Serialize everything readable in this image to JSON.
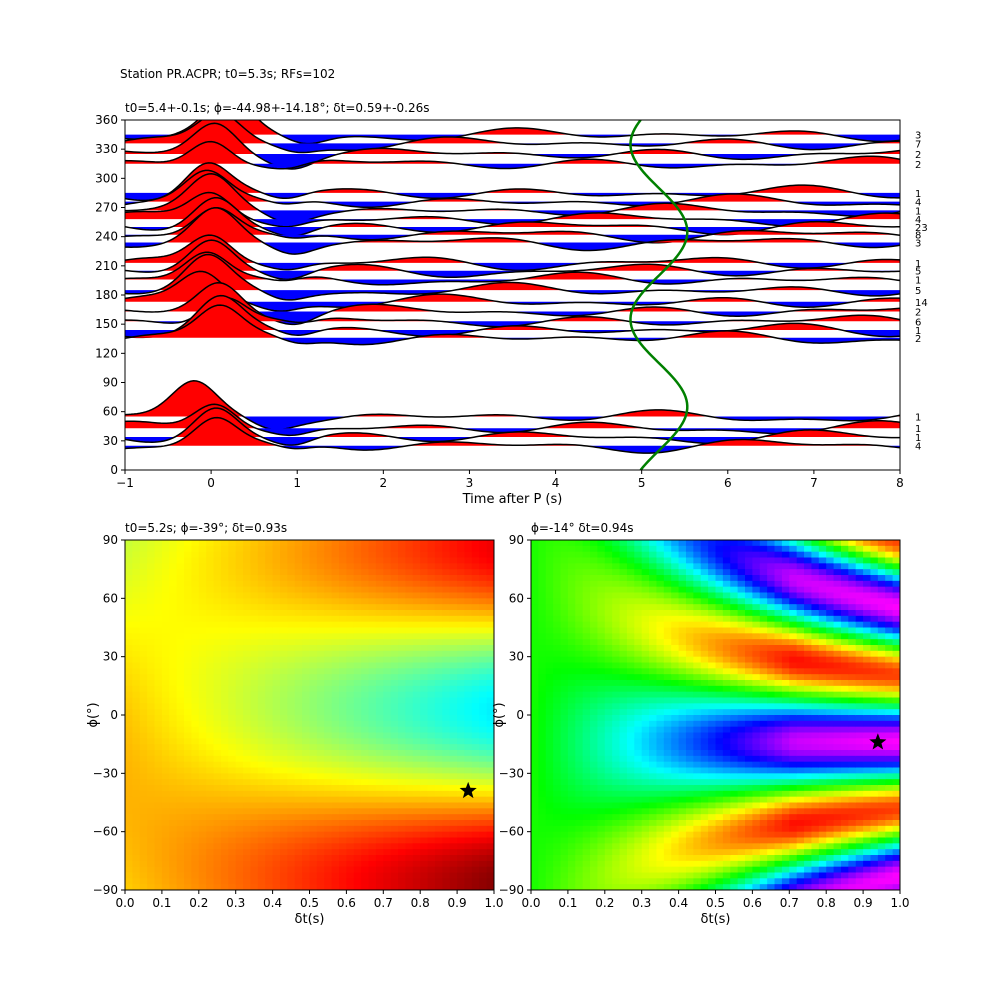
{
  "figure": {
    "suptitle": "Station PR.ACPR; t0=5.3s; RFs=102"
  },
  "chart_data": [
    {
      "type": "line",
      "title": "t0=5.4+-0.1s; ϕ=-44.98+-14.18°; δt=0.59+-0.26s",
      "xlabel": "Time after P (s)",
      "ylabel": "",
      "xlim": [
        -1,
        8
      ],
      "ylim": [
        0,
        360
      ],
      "xticks": [
        "−1",
        "0",
        "1",
        "2",
        "3",
        "4",
        "5",
        "6",
        "7",
        "8"
      ],
      "yticks": [
        "0",
        "30",
        "60",
        "90",
        "120",
        "150",
        "180",
        "210",
        "240",
        "270",
        "300",
        "330",
        "360"
      ],
      "positive_fill_color": "#ff0000",
      "negative_fill_color": "#0000ff",
      "trace_color": "#000000",
      "delay_curve_color": "#008000",
      "delay_curve_center_s": 5.2,
      "delay_curve_amplitude_s": 0.33,
      "traces": [
        {
          "back_azimuth": 345,
          "count": "3",
          "pulse_time": 0.2
        },
        {
          "back_azimuth": 336,
          "count": "7",
          "pulse_time": 0.1
        },
        {
          "back_azimuth": 325,
          "count": "2",
          "pulse_time": 0.05
        },
        {
          "back_azimuth": 315,
          "count": "2",
          "pulse_time": 0.0
        },
        {
          "back_azimuth": 285,
          "count": "1",
          "pulse_time": -0.05
        },
        {
          "back_azimuth": 276,
          "count": "4",
          "pulse_time": -0.05
        },
        {
          "back_azimuth": 267,
          "count": "1",
          "pulse_time": 0.0
        },
        {
          "back_azimuth": 258,
          "count": "4",
          "pulse_time": 0.0
        },
        {
          "back_azimuth": 250,
          "count": "23",
          "pulse_time": 0.05
        },
        {
          "back_azimuth": 242,
          "count": "8",
          "pulse_time": 0.05
        },
        {
          "back_azimuth": 234,
          "count": "3",
          "pulse_time": 0.05
        },
        {
          "back_azimuth": 213,
          "count": "1",
          "pulse_time": 0.0
        },
        {
          "back_azimuth": 205,
          "count": "5",
          "pulse_time": 0.0
        },
        {
          "back_azimuth": 196,
          "count": "1",
          "pulse_time": -0.05
        },
        {
          "back_azimuth": 185,
          "count": "5",
          "pulse_time": -0.05
        },
        {
          "back_azimuth": 173,
          "count": "14",
          "pulse_time": -0.1
        },
        {
          "back_azimuth": 163,
          "count": "2",
          "pulse_time": 0.1
        },
        {
          "back_azimuth": 153,
          "count": "6",
          "pulse_time": 0.15
        },
        {
          "back_azimuth": 144,
          "count": "1",
          "pulse_time": 0.1
        },
        {
          "back_azimuth": 136,
          "count": "2",
          "pulse_time": 0.1
        },
        {
          "back_azimuth": 55,
          "count": "1",
          "pulse_time": -0.2
        },
        {
          "back_azimuth": 43,
          "count": "1",
          "pulse_time": 0.05
        },
        {
          "back_azimuth": 34,
          "count": "1",
          "pulse_time": 0.05
        },
        {
          "back_azimuth": 25,
          "count": "4",
          "pulse_time": 0.05
        }
      ]
    },
    {
      "type": "heatmap",
      "title": "t0=5.2s; ϕ=-39°; δt=0.93s",
      "xlabel": "δt(s)",
      "ylabel": "ϕ(°)",
      "xlim": [
        0.0,
        1.0
      ],
      "ylim": [
        -90,
        90
      ],
      "xticks": [
        "0.0",
        "0.1",
        "0.2",
        "0.3",
        "0.4",
        "0.5",
        "0.6",
        "0.7",
        "0.8",
        "0.9",
        "1.0"
      ],
      "yticks": [
        "−90",
        "−60",
        "−30",
        "0",
        "30",
        "60",
        "90"
      ],
      "colormap": "jet",
      "best_fit": {
        "dt": 0.93,
        "phi": -39
      }
    },
    {
      "type": "heatmap",
      "title": "ϕ=-14° δt=0.94s",
      "xlabel": "δt(s)",
      "ylabel": "ϕ(°)",
      "xlim": [
        0.0,
        1.0
      ],
      "ylim": [
        -90,
        90
      ],
      "xticks": [
        "0.0",
        "0.1",
        "0.2",
        "0.3",
        "0.4",
        "0.5",
        "0.6",
        "0.7",
        "0.8",
        "0.9",
        "1.0"
      ],
      "yticks": [
        "−90",
        "−60",
        "−30",
        "0",
        "30",
        "60",
        "90"
      ],
      "colormap": "hsv",
      "best_fit": {
        "dt": 0.94,
        "phi": -14
      }
    }
  ]
}
